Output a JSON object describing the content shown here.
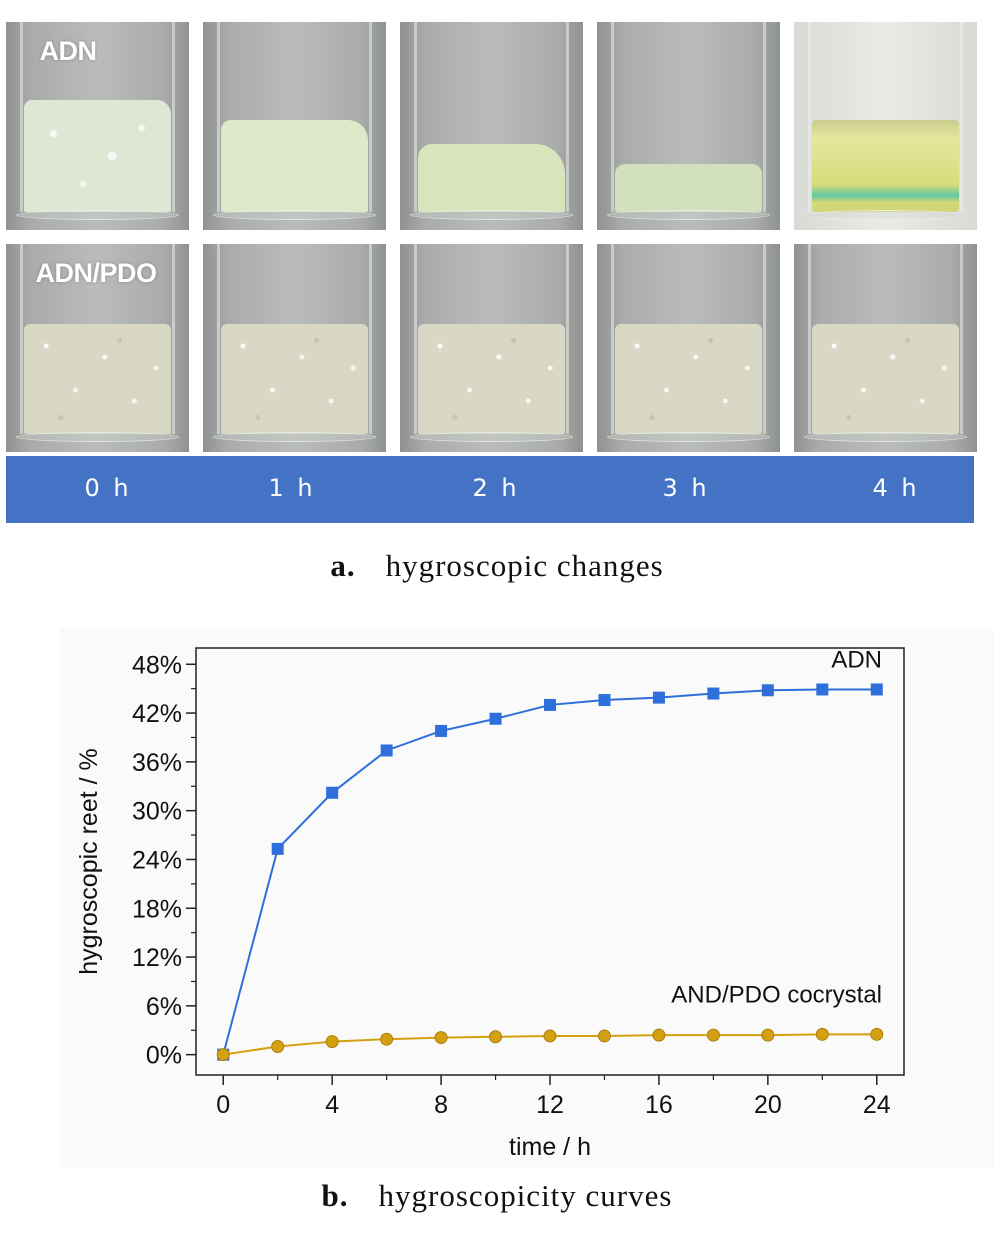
{
  "photo_panel": {
    "row_labels": [
      "ADN",
      "ADN/PDO"
    ],
    "time_labels": [
      "0 h",
      "1 h",
      "2 h",
      "3 h",
      "4 h"
    ],
    "time_bar_color": "#4472c4"
  },
  "captions": {
    "a_letter": "a.",
    "a_text": "hygroscopic changes",
    "b_letter": "b.",
    "b_text": "hygroscopicity curves"
  },
  "chart_data": {
    "type": "line",
    "xlabel": "time / h",
    "ylabel": "hygroscopic reet / %",
    "xlim": [
      -1,
      25
    ],
    "ylim": [
      -2.5,
      50
    ],
    "x_ticks": [
      0,
      4,
      8,
      12,
      16,
      20,
      24
    ],
    "y_ticks": [
      0,
      6,
      12,
      18,
      24,
      30,
      36,
      42,
      48
    ],
    "y_tick_labels": [
      "0%",
      "6%",
      "12%",
      "18%",
      "24%",
      "30%",
      "36%",
      "42%",
      "48%"
    ],
    "grid": false,
    "x": [
      0,
      2,
      4,
      6,
      8,
      10,
      12,
      14,
      16,
      18,
      20,
      22,
      24
    ],
    "series": [
      {
        "name": "ADN",
        "color": "#2f6fdc",
        "marker": "square",
        "values": [
          0,
          25.3,
          32.2,
          37.4,
          39.8,
          41.3,
          43.0,
          43.6,
          43.9,
          44.4,
          44.8,
          44.9,
          44.9
        ]
      },
      {
        "name": "AND/PDO cocrystal",
        "color": "#d4a012",
        "marker": "circle",
        "values": [
          0,
          1.0,
          1.6,
          1.9,
          2.1,
          2.2,
          2.3,
          2.3,
          2.4,
          2.4,
          2.4,
          2.5,
          2.5
        ]
      }
    ]
  }
}
